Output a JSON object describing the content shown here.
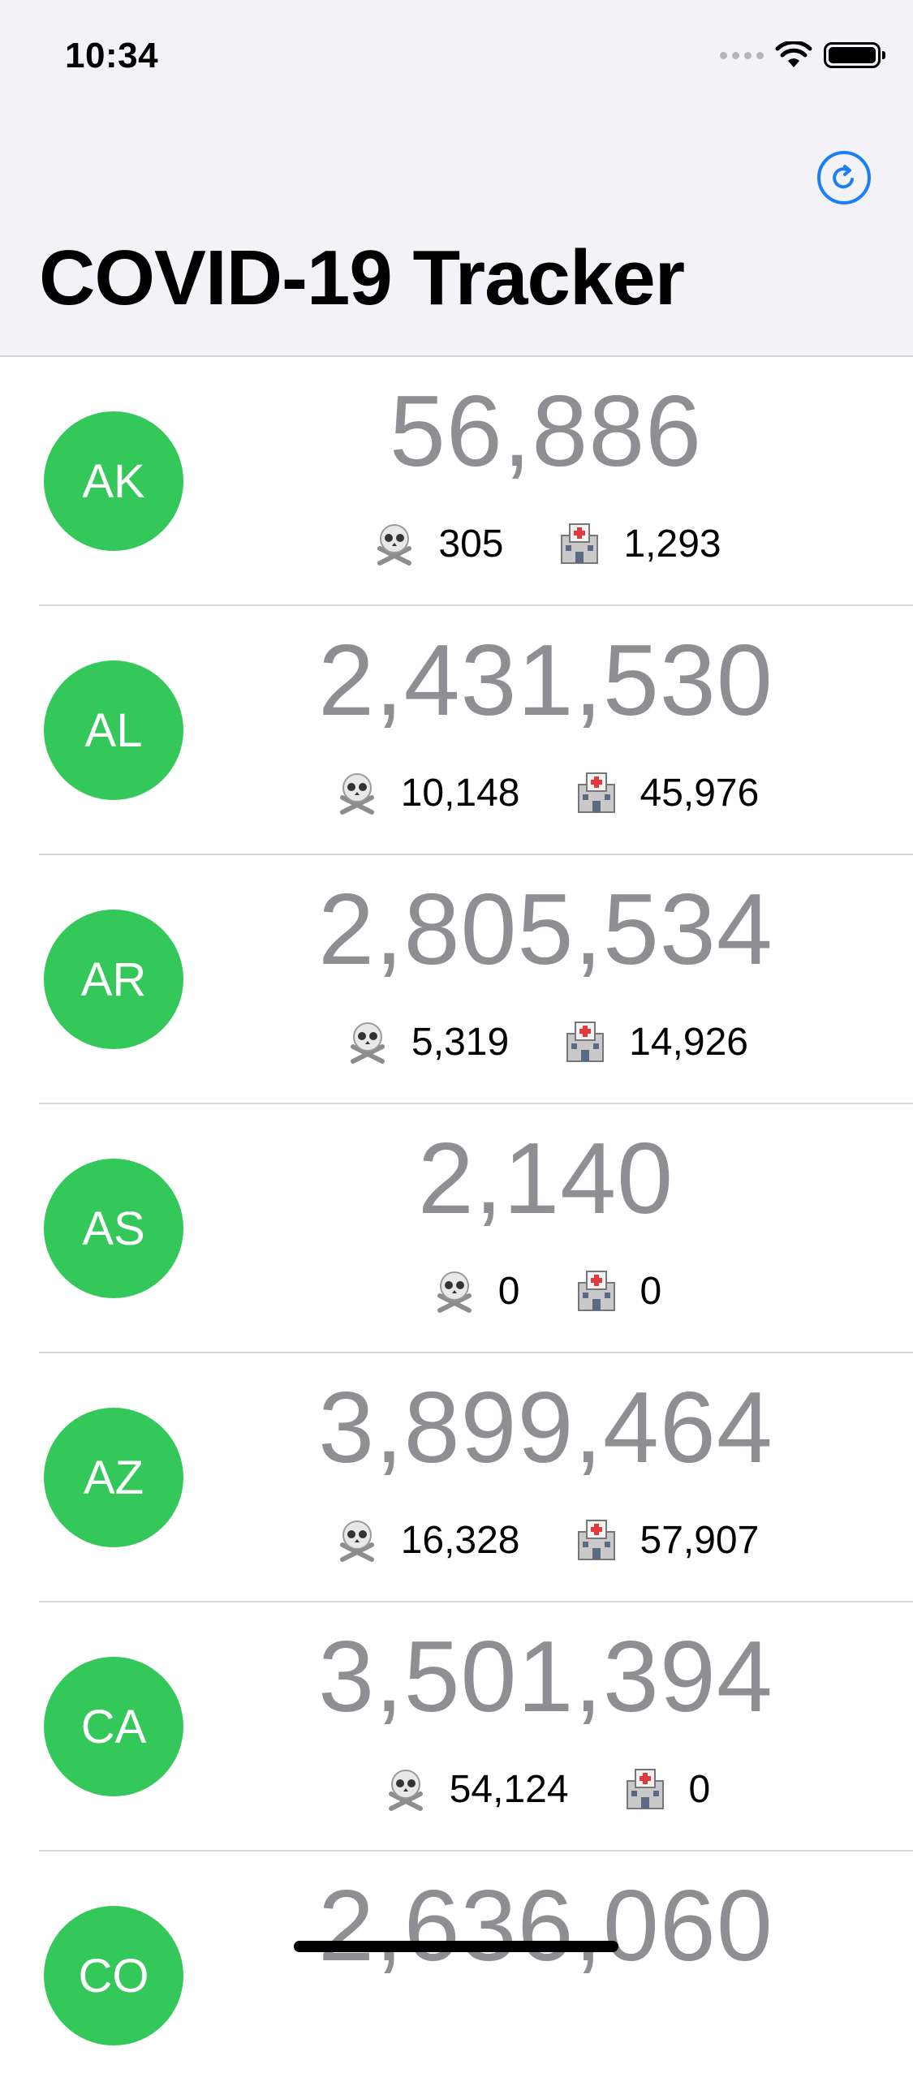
{
  "status_bar": {
    "time": "10:34"
  },
  "nav": {
    "title": "COVID-19 Tracker",
    "refresh_icon": "arrow-clockwise-circle-icon"
  },
  "icons": {
    "deaths": "skull-crossbones-icon",
    "hospital": "hospital-icon"
  },
  "colors": {
    "avatar": "#34c759",
    "accent": "#1a7ef5",
    "cases_text": "#8e8e93"
  },
  "states": [
    {
      "code": "AK",
      "cases": "56,886",
      "deaths": "305",
      "hospitalized": "1,293"
    },
    {
      "code": "AL",
      "cases": "2,431,530",
      "deaths": "10,148",
      "hospitalized": "45,976"
    },
    {
      "code": "AR",
      "cases": "2,805,534",
      "deaths": "5,319",
      "hospitalized": "14,926"
    },
    {
      "code": "AS",
      "cases": "2,140",
      "deaths": "0",
      "hospitalized": "0"
    },
    {
      "code": "AZ",
      "cases": "3,899,464",
      "deaths": "16,328",
      "hospitalized": "57,907"
    },
    {
      "code": "CA",
      "cases": "3,501,394",
      "deaths": "54,124",
      "hospitalized": "0"
    },
    {
      "code": "CO",
      "cases": "2,636,060",
      "deaths": "",
      "hospitalized": ""
    }
  ]
}
